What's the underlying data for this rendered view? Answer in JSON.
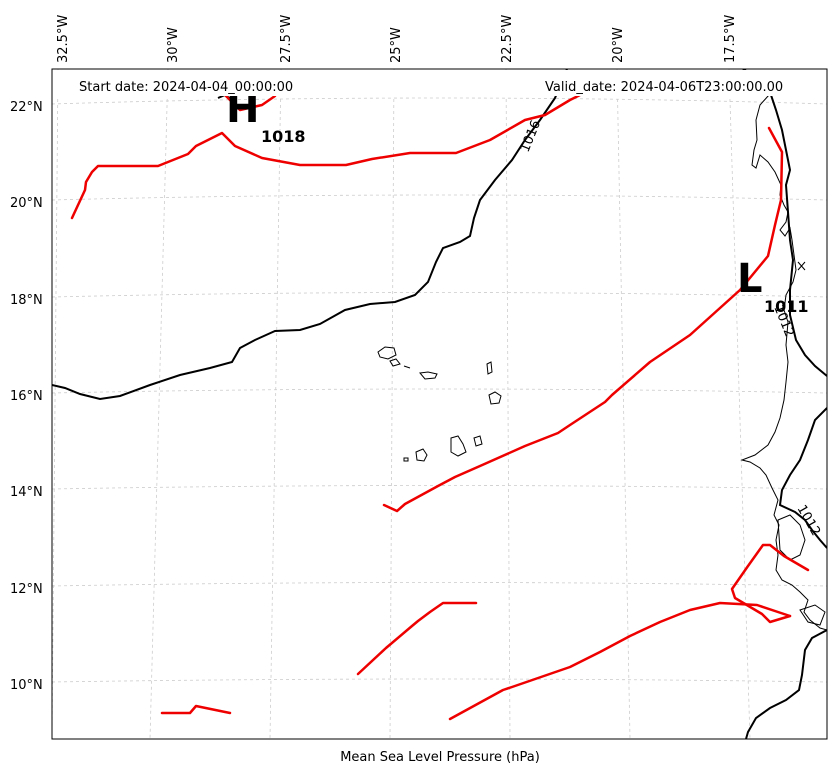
{
  "map": {
    "start_label": "Start date: 2024-04-04_00:00:00",
    "valid_label": "Valid_date: 2024-04-06T23:00:00.00",
    "caption": "Mean Sea Level Pressure (hPa)",
    "lon_ticks": [
      "32.5°W",
      "30°W",
      "27.5°W",
      "25°W",
      "22.5°W",
      "20°W",
      "17.5°W"
    ],
    "lat_ticks": [
      "22°N",
      "20°N",
      "18°N",
      "16°N",
      "14°N",
      "12°N",
      "10°N"
    ],
    "high": {
      "letter": "H",
      "value": "1018"
    },
    "low": {
      "letter": "L",
      "value": "1011"
    },
    "isobar_labels": [
      "1016",
      "1012",
      "1012"
    ],
    "colors": {
      "front": "#ee0000",
      "isobar": "#000000",
      "grid": "#cccccc"
    }
  }
}
